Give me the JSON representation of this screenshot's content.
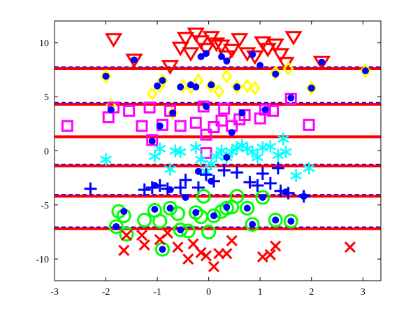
{
  "chart_data": {
    "type": "scatter",
    "title": "",
    "xlabel": "",
    "ylabel": "",
    "xlim": [
      -3,
      3.35
    ],
    "ylim": [
      -12,
      12
    ],
    "x_ticks": [
      -3,
      -2,
      -1,
      0,
      1,
      2,
      3
    ],
    "y_ticks": [
      -10,
      -5,
      0,
      5,
      10
    ],
    "x_tick_labels": [
      "-3",
      "-2",
      "-1",
      "0",
      "1",
      "2",
      "3"
    ],
    "y_tick_labels": [
      "-10",
      "-5",
      "0",
      "5",
      "10"
    ],
    "grid": false,
    "legend": "none",
    "colors": {
      "red": "#ff0000",
      "magenta": "#ff00ff",
      "yellow": "#ffff00",
      "cyan": "#00ffff",
      "blue": "#0000ff",
      "green": "#00ff00",
      "dash_blue": "#0000ff"
    },
    "horizontal_lines": [
      7.6,
      4.3,
      1.3,
      -1.4,
      -4.2,
      -7.2
    ],
    "dashed_lines": [
      7.6,
      4.3,
      -1.4,
      -4.2,
      -7.2
    ],
    "series": [
      {
        "marker": "triangle-down",
        "color": "#ff0000",
        "points": [
          [
            -1.85,
            10.3
          ],
          [
            -1.45,
            8.4
          ],
          [
            -0.75,
            7.8
          ],
          [
            -0.55,
            9.5
          ],
          [
            -0.45,
            10.4
          ],
          [
            -0.35,
            9.0
          ],
          [
            -0.25,
            10.8
          ],
          [
            -0.15,
            10.1
          ],
          [
            -0.05,
            9.4
          ],
          [
            0.05,
            10.5
          ],
          [
            0.15,
            9.9
          ],
          [
            0.25,
            9.7
          ],
          [
            0.35,
            8.7
          ],
          [
            0.45,
            9.3
          ],
          [
            0.6,
            10.3
          ],
          [
            0.75,
            9.0
          ],
          [
            0.9,
            8.7
          ],
          [
            1.05,
            10.0
          ],
          [
            1.15,
            9.4
          ],
          [
            1.3,
            9.8
          ],
          [
            1.4,
            8.9
          ],
          [
            1.5,
            8.1
          ],
          [
            1.65,
            10.5
          ],
          [
            2.2,
            8.2
          ]
        ]
      },
      {
        "marker": "diamond",
        "color": "#ffff00",
        "points": [
          [
            -2.0,
            6.9
          ],
          [
            -1.9,
            4.2
          ],
          [
            -1.1,
            5.3
          ],
          [
            -0.95,
            6.0
          ],
          [
            -0.9,
            6.5
          ],
          [
            -0.7,
            3.5
          ],
          [
            -0.5,
            6.0
          ],
          [
            -0.35,
            5.9
          ],
          [
            -0.2,
            6.5
          ],
          [
            0.05,
            6.0
          ],
          [
            0.2,
            5.5
          ],
          [
            0.35,
            6.9
          ],
          [
            0.55,
            5.9
          ],
          [
            0.75,
            6.0
          ],
          [
            0.9,
            5.8
          ],
          [
            1.3,
            7.2
          ],
          [
            1.55,
            7.6
          ],
          [
            2.0,
            5.8
          ],
          [
            3.05,
            7.4
          ]
        ]
      },
      {
        "marker": "square",
        "color": "#ff00ff",
        "points": [
          [
            -2.75,
            2.3
          ],
          [
            -1.95,
            3.1
          ],
          [
            -1.85,
            4.0
          ],
          [
            -1.55,
            3.7
          ],
          [
            -1.3,
            2.3
          ],
          [
            -1.15,
            4.0
          ],
          [
            -1.1,
            1.0
          ],
          [
            -0.9,
            2.4
          ],
          [
            -0.75,
            3.7
          ],
          [
            -0.55,
            2.3
          ],
          [
            -0.25,
            2.6
          ],
          [
            -0.1,
            4.1
          ],
          [
            -0.05,
            1.5
          ],
          [
            -0.05,
            -0.2
          ],
          [
            0.1,
            2.2
          ],
          [
            0.25,
            2.8
          ],
          [
            0.3,
            3.9
          ],
          [
            0.45,
            2.3
          ],
          [
            0.6,
            2.9
          ],
          [
            0.7,
            3.3
          ],
          [
            1.0,
            3.0
          ],
          [
            1.1,
            3.8
          ],
          [
            1.25,
            3.7
          ],
          [
            1.6,
            4.8
          ],
          [
            1.95,
            2.4
          ]
        ]
      },
      {
        "marker": "asterisk",
        "color": "#00ffff",
        "points": [
          [
            -2.0,
            -0.8
          ],
          [
            -1.05,
            -0.5
          ],
          [
            -0.95,
            0.2
          ],
          [
            -0.75,
            -1.7
          ],
          [
            -0.65,
            0.0
          ],
          [
            -0.55,
            -0.1
          ],
          [
            -0.25,
            0.3
          ],
          [
            -0.15,
            -0.8
          ],
          [
            -0.05,
            -1.9
          ],
          [
            0.05,
            -1.2
          ],
          [
            0.15,
            -0.5
          ],
          [
            0.25,
            0.0
          ],
          [
            0.35,
            -0.6
          ],
          [
            0.45,
            -0.1
          ],
          [
            0.55,
            0.3
          ],
          [
            0.65,
            0.5
          ],
          [
            0.75,
            0.2
          ],
          [
            0.85,
            -0.1
          ],
          [
            0.95,
            -0.6
          ],
          [
            1.05,
            0.3
          ],
          [
            1.2,
            0.4
          ],
          [
            1.35,
            -0.4
          ],
          [
            1.45,
            1.1
          ],
          [
            1.5,
            -0.1
          ],
          [
            1.7,
            -2.3
          ],
          [
            1.95,
            -1.6
          ]
        ]
      },
      {
        "marker": "plus",
        "color": "#0000ff",
        "points": [
          [
            -2.3,
            -3.5
          ],
          [
            -1.25,
            -3.6
          ],
          [
            -1.1,
            -3.4
          ],
          [
            -0.95,
            -3.2
          ],
          [
            -0.8,
            -3.5
          ],
          [
            -0.55,
            -3.4
          ],
          [
            -0.45,
            -2.7
          ],
          [
            -0.2,
            -3.4
          ],
          [
            -0.05,
            -2.2
          ],
          [
            0.1,
            -2.8
          ],
          [
            0.3,
            -1.8
          ],
          [
            0.55,
            -2.0
          ],
          [
            0.8,
            -2.9
          ],
          [
            0.95,
            -3.2
          ],
          [
            1.05,
            -2.1
          ],
          [
            1.2,
            -3.0
          ],
          [
            1.35,
            -1.6
          ],
          [
            1.4,
            -3.7
          ],
          [
            1.55,
            -3.9
          ],
          [
            1.85,
            -4.2
          ]
        ]
      },
      {
        "marker": "circle-open",
        "color": "#00ff00",
        "points": [
          [
            -1.8,
            -7.0
          ],
          [
            -1.75,
            -5.6
          ],
          [
            -1.65,
            -6.0
          ],
          [
            -1.6,
            -7.7
          ],
          [
            -1.25,
            -6.4
          ],
          [
            -1.05,
            -5.5
          ],
          [
            -0.95,
            -6.5
          ],
          [
            -0.9,
            -9.1
          ],
          [
            -0.75,
            -5.3
          ],
          [
            -0.6,
            -5.8
          ],
          [
            -0.55,
            -7.3
          ],
          [
            -0.4,
            -7.4
          ],
          [
            -0.25,
            -5.7
          ],
          [
            -0.15,
            -6.1
          ],
          [
            -0.1,
            -4.2
          ],
          [
            0.0,
            -7.5
          ],
          [
            0.1,
            -6.0
          ],
          [
            0.25,
            -5.6
          ],
          [
            0.35,
            -5.3
          ],
          [
            0.45,
            -5.2
          ],
          [
            0.55,
            -4.2
          ],
          [
            0.75,
            -5.3
          ],
          [
            0.85,
            -6.8
          ],
          [
            1.05,
            -4.3
          ],
          [
            1.3,
            -6.4
          ],
          [
            1.6,
            -6.5
          ]
        ]
      },
      {
        "marker": "x",
        "color": "#ff0000",
        "points": [
          [
            -1.65,
            -9.2
          ],
          [
            -1.6,
            -7.8
          ],
          [
            -1.3,
            -7.8
          ],
          [
            -1.25,
            -8.7
          ],
          [
            -0.95,
            -8.2
          ],
          [
            -0.8,
            -7.6
          ],
          [
            -0.6,
            -8.9
          ],
          [
            -0.4,
            -10.0
          ],
          [
            -0.3,
            -8.6
          ],
          [
            -0.15,
            -9.4
          ],
          [
            -0.05,
            -9.7
          ],
          [
            0.1,
            -10.7
          ],
          [
            0.2,
            -9.5
          ],
          [
            0.35,
            -9.5
          ],
          [
            0.45,
            -8.3
          ],
          [
            1.05,
            -9.8
          ],
          [
            1.2,
            -9.6
          ],
          [
            1.3,
            -8.8
          ],
          [
            2.75,
            -8.9
          ]
        ]
      },
      {
        "marker": "dot",
        "color": "#0000ff",
        "points": [
          [
            -2.0,
            6.9
          ],
          [
            -1.9,
            3.8
          ],
          [
            -1.45,
            8.4
          ],
          [
            -1.0,
            6.0
          ],
          [
            -0.9,
            6.5
          ],
          [
            -0.7,
            3.5
          ],
          [
            -0.55,
            5.9
          ],
          [
            -0.35,
            6.1
          ],
          [
            -0.25,
            5.9
          ],
          [
            -0.15,
            8.7
          ],
          [
            -0.05,
            9.0
          ],
          [
            0.05,
            6.1
          ],
          [
            0.25,
            8.7
          ],
          [
            0.35,
            8.3
          ],
          [
            0.55,
            5.9
          ],
          [
            0.65,
            3.5
          ],
          [
            0.85,
            8.9
          ],
          [
            1.0,
            7.9
          ],
          [
            1.3,
            7.1
          ],
          [
            1.6,
            4.9
          ],
          [
            2.0,
            5.8
          ],
          [
            2.2,
            8.2
          ],
          [
            3.05,
            7.4
          ],
          [
            -0.95,
            2.3
          ],
          [
            -0.05,
            4.1
          ],
          [
            0.45,
            1.7
          ],
          [
            1.1,
            3.8
          ],
          [
            -1.1,
            0.9
          ],
          [
            -0.2,
            -1.9
          ],
          [
            0.35,
            -0.6
          ],
          [
            -1.05,
            -3.2
          ],
          [
            -0.75,
            -3.6
          ],
          [
            -0.45,
            -4.3
          ],
          [
            0.05,
            -2.8
          ],
          [
            1.05,
            -4.3
          ],
          [
            1.5,
            -3.8
          ],
          [
            1.85,
            -4.2
          ],
          [
            -1.8,
            -7.0
          ],
          [
            -1.65,
            -5.6
          ],
          [
            -1.05,
            -5.4
          ],
          [
            -0.9,
            -9.1
          ],
          [
            -0.75,
            -5.3
          ],
          [
            -0.55,
            -7.3
          ],
          [
            -0.25,
            -5.7
          ],
          [
            0.1,
            -6.0
          ],
          [
            0.35,
            -5.2
          ],
          [
            0.75,
            -5.3
          ],
          [
            0.85,
            -6.8
          ],
          [
            1.3,
            -6.4
          ],
          [
            1.6,
            -6.5
          ]
        ]
      }
    ]
  }
}
